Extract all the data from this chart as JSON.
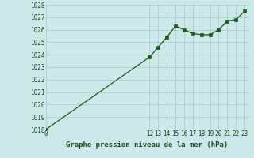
{
  "title": "Graphe pression niveau de la mer (hPa)",
  "x_values": [
    0,
    12,
    13,
    14,
    15,
    16,
    17,
    18,
    19,
    20,
    21,
    22,
    23
  ],
  "y_values": [
    1018.0,
    1023.8,
    1024.6,
    1025.4,
    1026.3,
    1026.0,
    1025.7,
    1025.6,
    1025.6,
    1026.0,
    1026.7,
    1026.8,
    1027.5
  ],
  "line_color": "#1a5c1a",
  "marker_color": "#1a5c1a",
  "bg_color": "#cce8e8",
  "grid_color": "#aac8c8",
  "axis_label_color": "#1a4c1a",
  "ylim": [
    1018,
    1028
  ],
  "yticks": [
    1018,
    1019,
    1020,
    1021,
    1022,
    1023,
    1024,
    1025,
    1026,
    1027,
    1028
  ],
  "xtick_labels": [
    "0",
    "12",
    "13",
    "14",
    "15",
    "16",
    "17",
    "18",
    "19",
    "20",
    "21",
    "22",
    "23"
  ],
  "xtick_positions": [
    0,
    12,
    13,
    14,
    15,
    16,
    17,
    18,
    19,
    20,
    21,
    22,
    23
  ],
  "xlim": [
    0,
    23.5
  ],
  "marker_size": 2.5,
  "linewidth": 0.9,
  "fontsize_title": 6.5,
  "fontsize_ticks": 5.5
}
